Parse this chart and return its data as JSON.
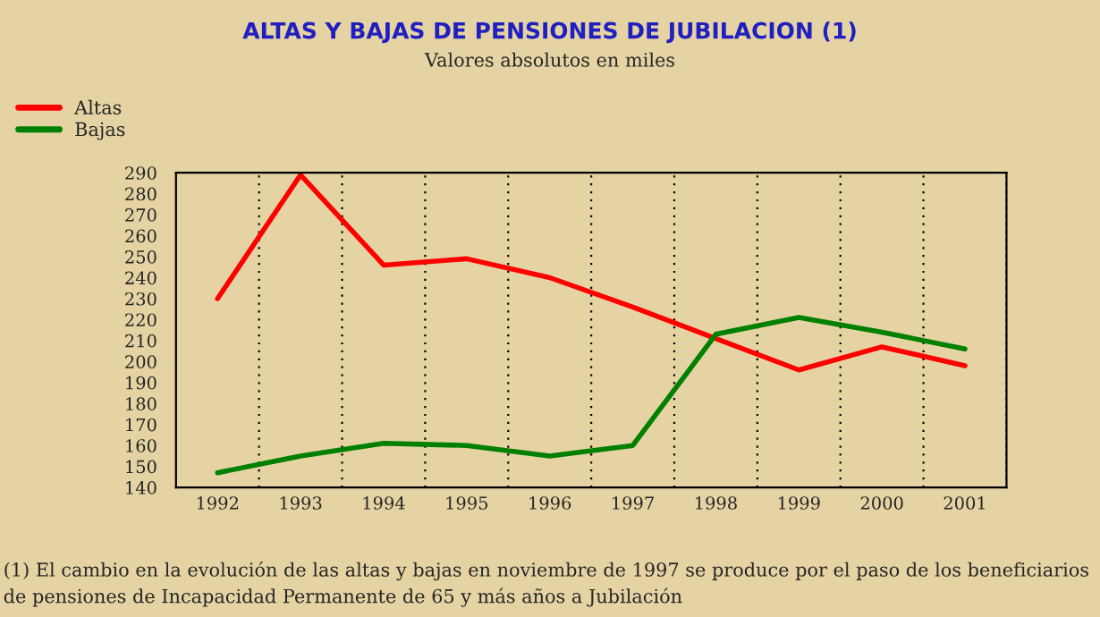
{
  "chart_data": {
    "type": "line",
    "title": "ALTAS Y BAJAS DE PENSIONES DE JUBILACION (1)",
    "subtitle": "Valores absolutos en miles",
    "categories": [
      "1992",
      "1993",
      "1994",
      "1995",
      "1996",
      "1997",
      "1998",
      "1999",
      "2000",
      "2001"
    ],
    "series": [
      {
        "name": "Altas",
        "color": "#ff0000",
        "values": [
          230,
          289,
          246,
          249,
          240,
          226,
          211,
          196,
          207,
          198
        ]
      },
      {
        "name": "Bajas",
        "color": "#008000",
        "values": [
          147,
          155,
          161,
          160,
          155,
          160,
          213,
          221,
          214,
          206
        ]
      }
    ],
    "ylim": [
      140,
      290
    ],
    "yticks": [
      140,
      150,
      160,
      170,
      180,
      190,
      200,
      210,
      220,
      230,
      240,
      250,
      260,
      270,
      280,
      290
    ],
    "grid": "x",
    "legend": "top left",
    "marker": "none",
    "line_style": "solid",
    "annotations": [
      "(1) El cambio en la evolución de las altas y bajas en noviembre de 1997 se produce por el paso de los beneficiarios de pensiones de Incapacidad Permanente de 65 y más años a Jubilación"
    ]
  }
}
